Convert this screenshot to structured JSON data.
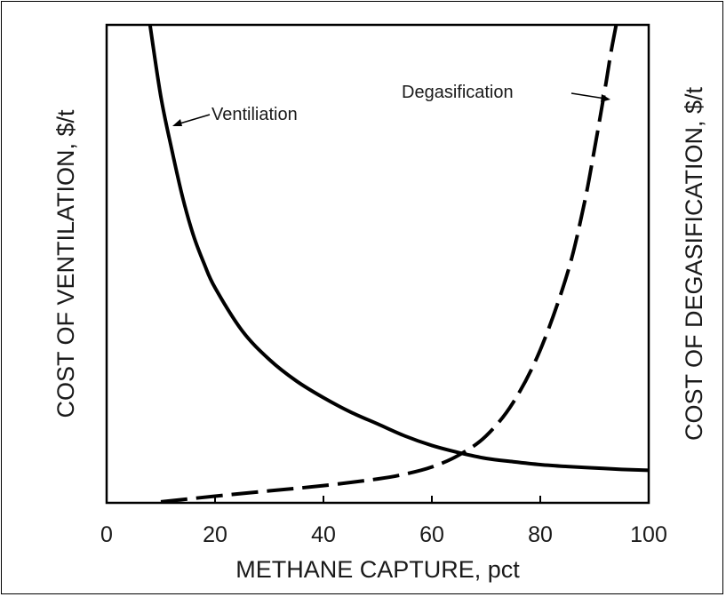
{
  "chart_data": {
    "type": "line",
    "title": "",
    "xlabel": "METHANE CAPTURE, pct",
    "ylabel": "COST OF VENTILATION, $/t",
    "ylabel_right": "COST OF DEGASIFICATION, $/t",
    "xlim": [
      0,
      100
    ],
    "ylim": [
      0,
      100
    ],
    "x_ticks": [
      "0",
      "20",
      "40",
      "60",
      "80",
      "100"
    ],
    "grid": false,
    "legend": "none",
    "series": [
      {
        "name": "Ventiliation",
        "style": "solid",
        "color": "#000000",
        "points": [
          [
            8,
            100
          ],
          [
            10,
            85
          ],
          [
            12,
            74
          ],
          [
            14,
            64
          ],
          [
            16,
            56
          ],
          [
            18,
            50
          ],
          [
            20,
            45
          ],
          [
            25,
            36
          ],
          [
            30,
            30
          ],
          [
            35,
            25.5
          ],
          [
            40,
            22
          ],
          [
            45,
            19
          ],
          [
            50,
            16.5
          ],
          [
            55,
            14
          ],
          [
            60,
            12
          ],
          [
            65,
            10.5
          ],
          [
            70,
            9.3
          ],
          [
            75,
            8.6
          ],
          [
            80,
            8
          ],
          [
            85,
            7.6
          ],
          [
            90,
            7.3
          ],
          [
            95,
            7
          ],
          [
            100,
            6.8
          ]
        ]
      },
      {
        "name": "Degasification",
        "style": "dashed",
        "color": "#000000",
        "points": [
          [
            10,
            0.2
          ],
          [
            20,
            1.4
          ],
          [
            30,
            2.5
          ],
          [
            40,
            3.6
          ],
          [
            50,
            5
          ],
          [
            55,
            6
          ],
          [
            60,
            7.5
          ],
          [
            65,
            10
          ],
          [
            70,
            14
          ],
          [
            75,
            21
          ],
          [
            80,
            32
          ],
          [
            85,
            48
          ],
          [
            88,
            62
          ],
          [
            90,
            74
          ],
          [
            92,
            87
          ],
          [
            93,
            94
          ],
          [
            94,
            100
          ]
        ]
      }
    ],
    "annotations": [
      {
        "text": "Ventiliation",
        "arrow_to_x": 13
      },
      {
        "text": "Degasification",
        "arrow_to_x": 93
      }
    ]
  }
}
